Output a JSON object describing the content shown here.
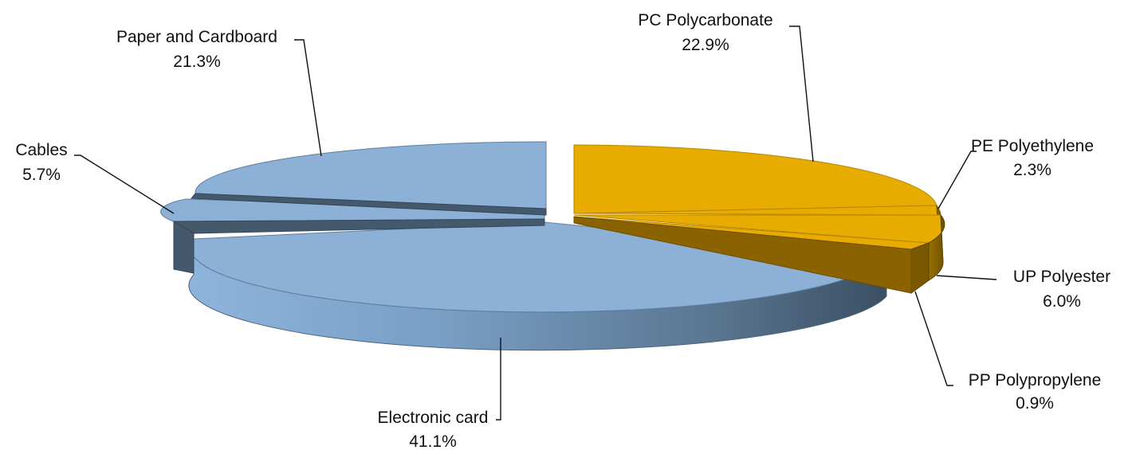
{
  "chart_data": {
    "type": "pie",
    "style": "3d-exploded",
    "title": "",
    "slices": [
      {
        "label": "PC Polycarbonate",
        "value": 22.9,
        "value_label": "22.9%",
        "color": "#e8ab00",
        "group": "plastics"
      },
      {
        "label": "PE Polyethylene",
        "value": 2.3,
        "value_label": "2.3%",
        "color": "#e8ab00",
        "group": "plastics"
      },
      {
        "label": "UP Polyester",
        "value": 6.0,
        "value_label": "6.0%",
        "color": "#e8ab00",
        "group": "plastics"
      },
      {
        "label": "PP Polypropylene",
        "value": 0.9,
        "value_label": "0.9%",
        "color": "#e8ab00",
        "group": "plastics"
      },
      {
        "label": "Electronic card",
        "value": 41.1,
        "value_label": "41.1%",
        "color": "#8cb0d6",
        "group": "other"
      },
      {
        "label": "Cables",
        "value": 5.7,
        "value_label": "5.7%",
        "color": "#8cb0d6",
        "group": "other"
      },
      {
        "label": "Paper and Cardboard",
        "value": 21.3,
        "value_label": "21.3%",
        "color": "#8cb0d6",
        "group": "other"
      }
    ],
    "legend": "none",
    "data_labels": "outside with leader lines"
  }
}
